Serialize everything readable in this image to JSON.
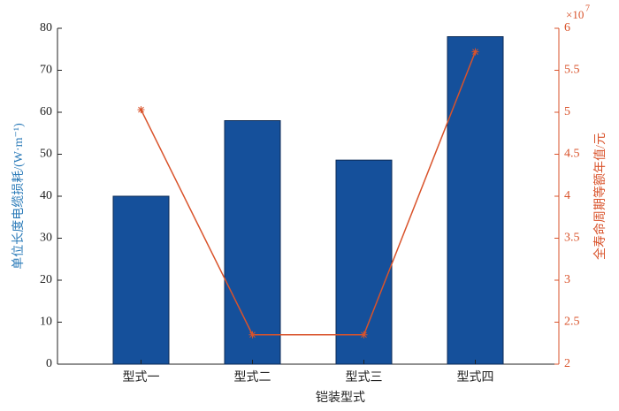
{
  "chart_data": {
    "type": "bar-line",
    "categories": [
      "型式一",
      "型式二",
      "型式三",
      "型式四"
    ],
    "xlabel": "铠装型式",
    "ylabel": "单位长度电缆损耗/(W·m⁻¹)",
    "y2label": "全寿命周期等额年值/元",
    "y2_multiplier": "×10",
    "y2_multiplier_exponent": "7",
    "series": [
      {
        "type": "bar",
        "color": "#15509b",
        "values": [
          40,
          58,
          48.6,
          78
        ]
      },
      {
        "type": "line",
        "color": "#d9532b",
        "axis": "y2",
        "values": [
          5.03,
          2.35,
          2.35,
          5.72
        ]
      }
    ],
    "ylim": [
      0,
      80
    ],
    "yticks": [
      0,
      10,
      20,
      30,
      40,
      50,
      60,
      70,
      80
    ],
    "y2lim": [
      2,
      6
    ],
    "y2ticks": [
      2,
      2.5,
      3,
      3.5,
      4,
      4.5,
      5,
      5.5,
      6
    ],
    "ylabel_color": "#2a7ab8",
    "y2label_color": "#d9532b"
  }
}
